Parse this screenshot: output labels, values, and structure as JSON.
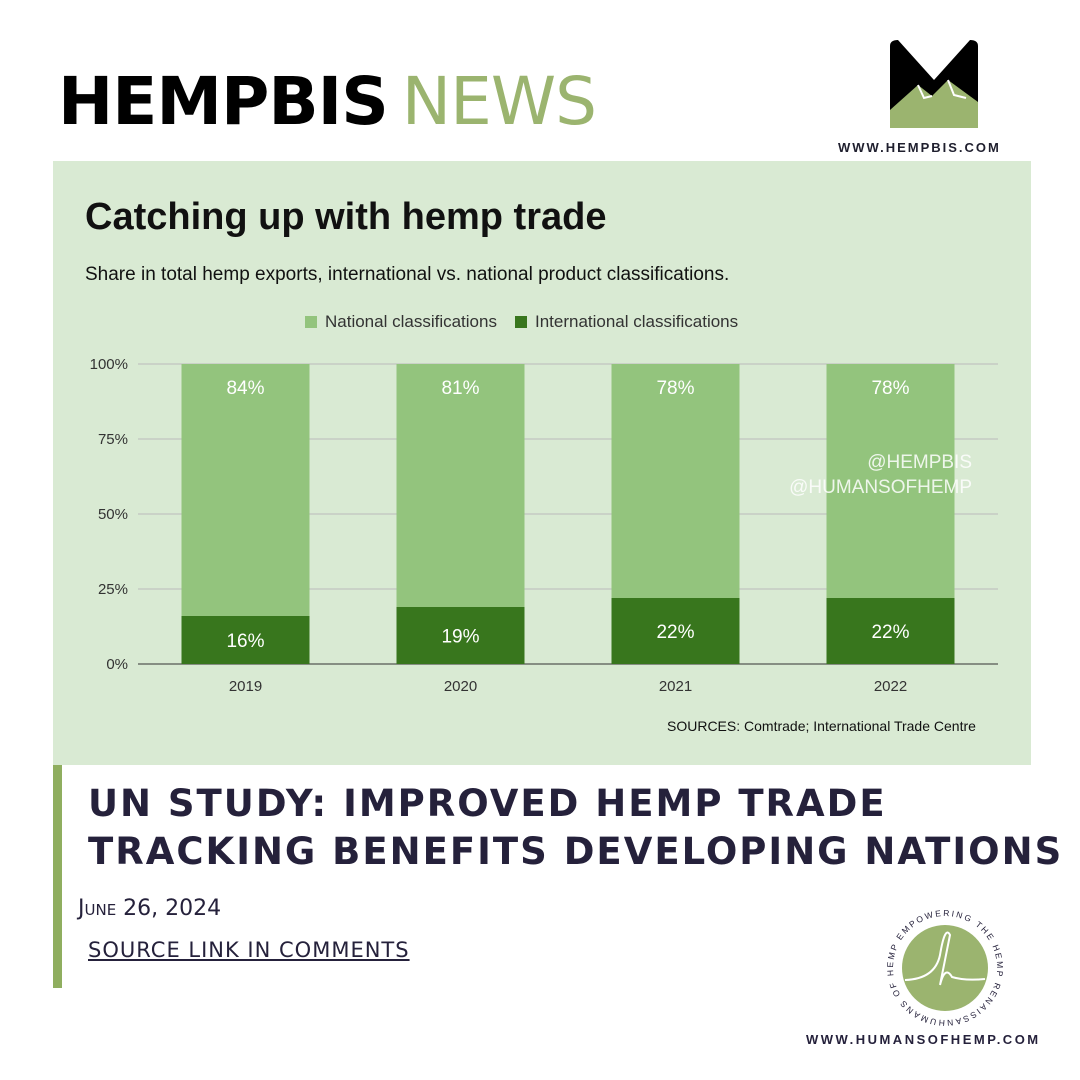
{
  "header": {
    "brand_main": "HEMPBIS",
    "brand_accent": "NEWS",
    "website": "WWW.HEMPBIS.COM"
  },
  "chart_data": {
    "type": "bar",
    "stacked": true,
    "title": "Catching up with hemp trade",
    "subtitle": "Share in total hemp exports, international vs. national product classifications.",
    "categories": [
      "2019",
      "2020",
      "2021",
      "2022"
    ],
    "series": [
      {
        "name": "International classifications",
        "values": [
          16,
          19,
          22,
          22
        ],
        "labels": [
          "16%",
          "19%",
          "22%",
          "22%"
        ],
        "color": "#38761d"
      },
      {
        "name": "National classifications",
        "values": [
          84,
          81,
          78,
          78
        ],
        "labels": [
          "84%",
          "81%",
          "78%",
          "78%"
        ],
        "color": "#93c47d"
      }
    ],
    "ylim": [
      0,
      100
    ],
    "yticks": [
      "0%",
      "25%",
      "50%",
      "75%",
      "100%"
    ],
    "legend": "top",
    "grid": true,
    "source": "SOURCES: Comtrade; International Trade Centre"
  },
  "watermarks": [
    "@HEMPBIS",
    "@HUMANSOFHEMP"
  ],
  "article": {
    "headline_line1": "UN STUDY: IMPROVED HEMP TRADE",
    "headline_line2": "TRACKING BENEFITS DEVELOPING NATIONS",
    "date": "June 26, 2024",
    "source_link": "SOURCE LINK IN COMMENTS"
  },
  "footer": {
    "logo_text": "HUMANS OF HEMP EMPOWERING THE HEMP RENAISSANCE",
    "website": "WWW.HUMANSOFHEMP.COM"
  },
  "colors": {
    "panel": "#d9ead3",
    "brand_green": "#9bb46f",
    "navy": "#25213b"
  }
}
